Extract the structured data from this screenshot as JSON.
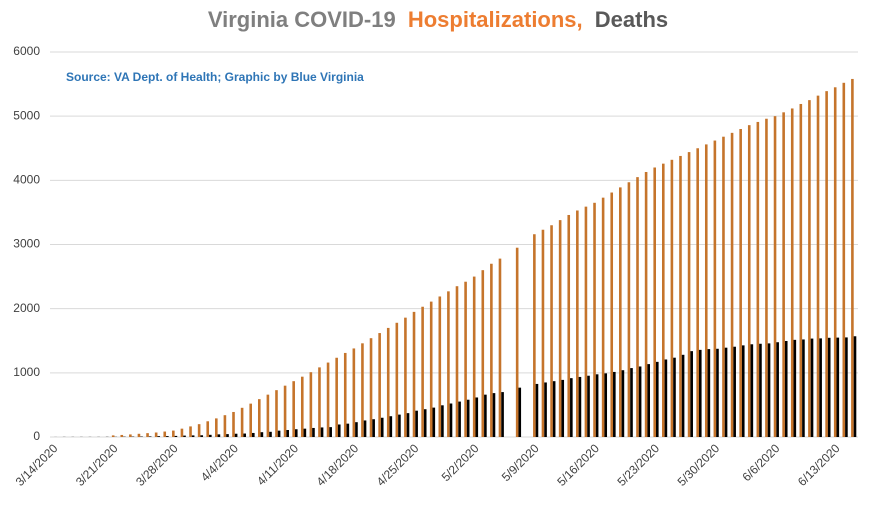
{
  "chart_data": {
    "type": "bar",
    "title_parts": [
      {
        "text": "Virginia COVID-19",
        "color": "#7f7f7f"
      },
      {
        "text": "Hospitalizations,",
        "color": "#ed7d31"
      },
      {
        "text": "Deaths",
        "color": "#595959"
      }
    ],
    "annotation": "Source: VA Dept. of Health; Graphic by Blue Virginia",
    "categories": [
      "3/14/2020",
      null,
      null,
      null,
      null,
      null,
      null,
      "3/21/2020",
      null,
      null,
      null,
      null,
      null,
      null,
      "3/28/2020",
      null,
      null,
      null,
      null,
      null,
      null,
      "4/4/2020",
      null,
      null,
      null,
      null,
      null,
      null,
      "4/11/2020",
      null,
      null,
      null,
      null,
      null,
      null,
      "4/18/2020",
      null,
      null,
      null,
      null,
      null,
      null,
      "4/25/2020",
      null,
      null,
      null,
      null,
      null,
      null,
      "5/2/2020",
      null,
      null,
      null,
      null,
      null,
      null,
      "5/9/2020",
      null,
      null,
      null,
      null,
      null,
      null,
      "5/16/2020",
      null,
      null,
      null,
      null,
      null,
      null,
      "5/23/2020",
      null,
      null,
      null,
      null,
      null,
      null,
      "5/30/2020",
      null,
      null,
      null,
      null,
      null,
      null,
      "6/6/2020",
      null,
      null,
      null,
      null,
      null,
      null,
      "6/13/2020",
      null,
      null
    ],
    "series": [
      {
        "name": "Hospitalizations",
        "color": "#c5742b",
        "values": [
          null,
          null,
          null,
          null,
          null,
          null,
          null,
          25,
          32,
          40,
          50,
          60,
          70,
          85,
          100,
          130,
          165,
          200,
          245,
          290,
          340,
          390,
          455,
          520,
          590,
          660,
          730,
          800,
          870,
          940,
          1010,
          1085,
          1160,
          1235,
          1310,
          1380,
          1460,
          1540,
          1620,
          1700,
          1780,
          1860,
          1950,
          2030,
          2110,
          2190,
          2270,
          2350,
          2420,
          2500,
          2600,
          2700,
          2780,
          null,
          2950,
          null,
          3160,
          3230,
          3300,
          3380,
          3460,
          3530,
          3590,
          3650,
          3730,
          3810,
          3890,
          3970,
          4050,
          4130,
          4200,
          4260,
          4320,
          4380,
          4440,
          4500,
          4560,
          4620,
          4680,
          4740,
          4800,
          4860,
          4910,
          4960,
          5000,
          5060,
          5120,
          5190,
          5250,
          5320,
          5390,
          5450,
          5520,
          5580
        ]
      },
      {
        "name": "Deaths",
        "color": "#000000",
        "values": [
          1,
          2,
          2,
          2,
          2,
          2,
          3,
          3,
          5,
          6,
          7,
          9,
          13,
          14,
          17,
          22,
          25,
          27,
          34,
          41,
          45,
          51,
          54,
          63,
          75,
          81,
          99,
          109,
          121,
          130,
          141,
          149,
          154,
          195,
          208,
          231,
          258,
          277,
          300,
          324,
          349,
          372,
          410,
          433,
          458,
          494,
          522,
          552,
          581,
          616,
          660,
          684,
          700,
          null,
          769,
          null,
          827,
          850,
          870,
          890,
          917,
          936,
          955,
          977,
          992,
          1014,
          1041,
          1074,
          1099,
          1136,
          1171,
          1208,
          1236,
          1281,
          1338,
          1358,
          1370,
          1375,
          1392,
          1407,
          1428,
          1445,
          1453,
          1459,
          1477,
          1496,
          1514,
          1520,
          1534,
          1537,
          1546,
          1549,
          1552,
          1570
        ]
      }
    ],
    "ylim": [
      0,
      6000
    ],
    "yticks": [
      0,
      1000,
      2000,
      3000,
      4000,
      5000,
      6000
    ],
    "grid": true
  }
}
